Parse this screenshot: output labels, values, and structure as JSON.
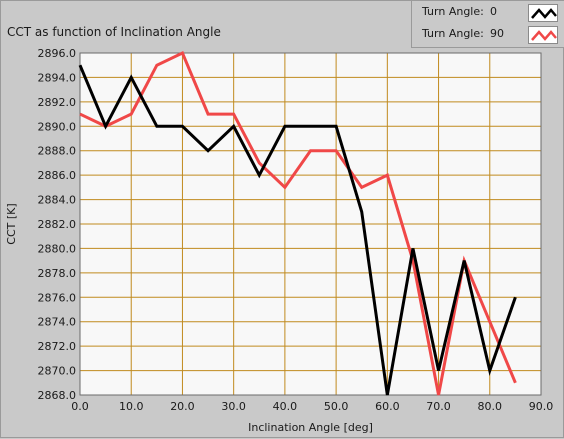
{
  "chart_data": {
    "type": "line",
    "title": "CCT as function of Inclination Angle",
    "xlabel": "Inclination Angle [deg]",
    "ylabel": "CCT [K]",
    "xlim": [
      0,
      90
    ],
    "ylim": [
      2868,
      2896
    ],
    "x_ticks": [
      "0.0",
      "10.0",
      "20.0",
      "30.0",
      "40.0",
      "50.0",
      "60.0",
      "70.0",
      "80.0",
      "90.0"
    ],
    "y_ticks": [
      "2868.0",
      "2870.0",
      "2872.0",
      "2874.0",
      "2876.0",
      "2878.0",
      "2880.0",
      "2882.0",
      "2884.0",
      "2886.0",
      "2888.0",
      "2890.0",
      "2892.0",
      "2894.0",
      "2896.0"
    ],
    "grid": true,
    "grid_color": "#c08a1e",
    "plot_background": "#f8f8f8",
    "legend_position": "top-right",
    "series": [
      {
        "name": "Turn Angle:",
        "legend_value": "0",
        "color": "#000000",
        "x": [
          0,
          5,
          10,
          15,
          20,
          25,
          30,
          35,
          40,
          45,
          50,
          55,
          60,
          65,
          70,
          75,
          80,
          85
        ],
        "y": [
          2895,
          2890,
          2894,
          2890,
          2890,
          2888,
          2890,
          2886,
          2890,
          2890,
          2890,
          2883,
          2868,
          2880,
          2870,
          2879,
          2870,
          2876
        ]
      },
      {
        "name": "Turn Angle:",
        "legend_value": "90",
        "color": "#f04848",
        "x": [
          0,
          5,
          10,
          15,
          20,
          25,
          30,
          35,
          40,
          45,
          50,
          55,
          60,
          65,
          70,
          75,
          80,
          85
        ],
        "y": [
          2891,
          2890,
          2891,
          2895,
          2896,
          2891,
          2891,
          2887,
          2885,
          2888,
          2888,
          2885,
          2886,
          2879,
          2868,
          2879,
          2874,
          2869
        ]
      }
    ]
  }
}
